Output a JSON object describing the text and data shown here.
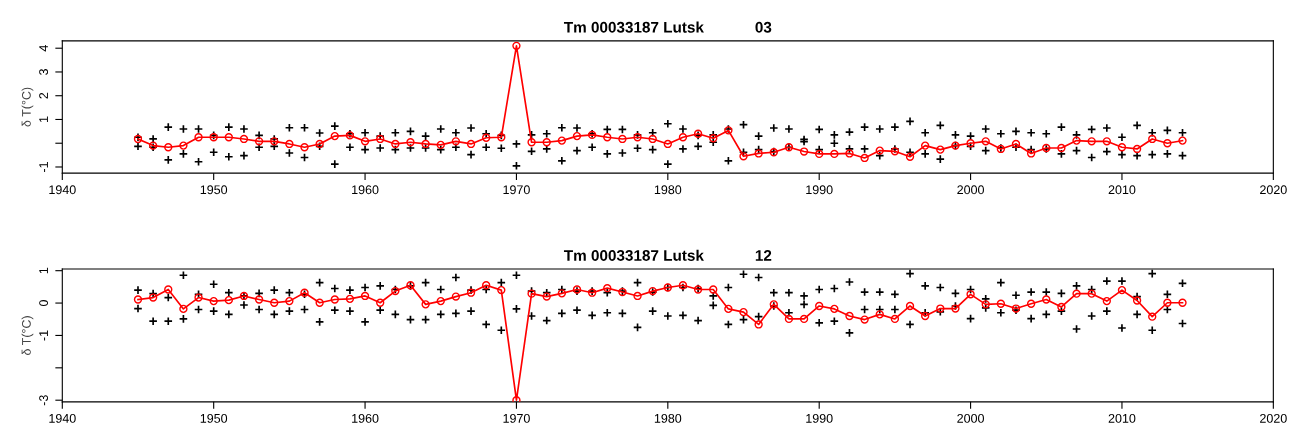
{
  "chart_data": [
    {
      "type": "line",
      "title": "Tm 00033187 Lutsk            03",
      "ylabel": "δ T(°C)",
      "xlim": [
        1940,
        2020
      ],
      "xticks": [
        1940,
        1950,
        1960,
        1970,
        1980,
        1990,
        2000,
        2010,
        2020
      ],
      "ylim": [
        -1.26,
        4.31
      ],
      "yticks": [
        -1,
        {
          "value": 0,
          "label": null
        },
        1,
        2,
        3,
        4
      ],
      "grid": false,
      "series": [
        {
          "type": "scatter",
          "color": "#000000",
          "marker": "cross",
          "x": [
            1945,
            1945,
            1946,
            1946,
            1947,
            1947,
            1948,
            1948,
            1949,
            1949,
            1950,
            1950,
            1951,
            1951,
            1952,
            1952,
            1953,
            1953,
            1954,
            1954,
            1955,
            1955,
            1956,
            1956,
            1957,
            1957,
            1958,
            1958,
            1959,
            1959,
            1960,
            1960,
            1961,
            1961,
            1962,
            1962,
            1963,
            1963,
            1964,
            1964,
            1965,
            1965,
            1966,
            1966,
            1967,
            1967,
            1968,
            1968,
            1969,
            1969,
            1970,
            1970,
            1971,
            1971,
            1972,
            1972,
            1973,
            1973,
            1974,
            1974,
            1975,
            1975,
            1976,
            1976,
            1977,
            1977,
            1978,
            1978,
            1979,
            1979,
            1980,
            1980,
            1981,
            1981,
            1982,
            1982,
            1983,
            1983,
            1984,
            1984,
            1985,
            1985,
            1986,
            1986,
            1987,
            1987,
            1988,
            1988,
            1989,
            1989,
            1990,
            1990,
            1991,
            1991,
            1992,
            1992,
            1993,
            1993,
            1994,
            1994,
            1995,
            1995,
            1996,
            1996,
            1997,
            1997,
            1998,
            1998,
            1999,
            1999,
            2000,
            2000,
            2001,
            2001,
            2002,
            2002,
            2003,
            2003,
            2004,
            2004,
            2005,
            2005,
            2006,
            2006,
            2007,
            2007,
            2008,
            2008,
            2009,
            2009,
            2010,
            2010,
            2011,
            2011,
            2012,
            2012,
            2013,
            2013,
            2014,
            2014
          ],
          "values": [
            0.25,
            -0.13,
            0.18,
            -0.17,
            0.68,
            -0.7,
            0.6,
            -0.45,
            0.6,
            -0.78,
            0.33,
            -0.38,
            0.68,
            -0.57,
            0.6,
            -0.52,
            0.33,
            -0.17,
            0.18,
            -0.13,
            0.65,
            -0.41,
            0.65,
            -0.6,
            0.43,
            -0.13,
            0.72,
            -0.88,
            0.4,
            -0.17,
            0.44,
            -0.27,
            0.3,
            -0.2,
            0.44,
            -0.27,
            0.5,
            -0.2,
            0.3,
            -0.2,
            0.6,
            -0.27,
            0.44,
            -0.17,
            0.64,
            -0.48,
            0.4,
            -0.17,
            0.33,
            -0.21,
            -0.03,
            -0.95,
            0.35,
            -0.34,
            0.4,
            -0.24,
            0.65,
            -0.74,
            0.64,
            -0.31,
            0.4,
            -0.17,
            0.58,
            -0.45,
            0.58,
            -0.41,
            0.35,
            -0.21,
            0.44,
            -0.27,
            0.82,
            -0.88,
            0.6,
            -0.24,
            0.33,
            -0.13,
            0.35,
            0.04,
            0.6,
            -0.74,
            0.78,
            -0.38,
            0.3,
            -0.27,
            0.64,
            -0.35,
            0.6,
            -0.17,
            0.16,
            0.07,
            0.58,
            -0.27,
            0.35,
            0,
            0.47,
            -0.24,
            0.68,
            -0.24,
            0.6,
            -0.52,
            0.68,
            -0.24,
            0.92,
            -0.38,
            0.44,
            -0.45,
            0.75,
            -0.67,
            0.35,
            -0.1,
            0.3,
            -0.13,
            0.6,
            -0.31,
            0.4,
            -0.2,
            0.5,
            -0.17,
            0.44,
            -0.27,
            0.4,
            -0.24,
            0.68,
            -0.45,
            0.35,
            -0.31,
            0.58,
            -0.6,
            0.64,
            -0.35,
            0.25,
            -0.48,
            0.75,
            -0.52,
            0.44,
            -0.48,
            0.54,
            -0.45,
            0.44,
            -0.52
          ]
        },
        {
          "color": "#ff0000",
          "marker": "circle",
          "x": [
            1945,
            1946,
            1947,
            1948,
            1949,
            1950,
            1951,
            1952,
            1953,
            1954,
            1955,
            1956,
            1957,
            1958,
            1959,
            1960,
            1961,
            1962,
            1963,
            1964,
            1965,
            1966,
            1967,
            1968,
            1969,
            1970,
            1971,
            1972,
            1973,
            1974,
            1975,
            1976,
            1977,
            1978,
            1979,
            1980,
            1981,
            1982,
            1983,
            1984,
            1985,
            1986,
            1987,
            1988,
            1989,
            1990,
            1991,
            1992,
            1993,
            1994,
            1995,
            1996,
            1997,
            1998,
            1999,
            2000,
            2001,
            2002,
            2003,
            2004,
            2005,
            2006,
            2007,
            2008,
            2009,
            2010,
            2011,
            2012,
            2013,
            2014
          ],
          "values": [
            0.18,
            -0.1,
            -0.17,
            -0.1,
            0.25,
            0.25,
            0.25,
            0.18,
            0.08,
            0.08,
            -0.03,
            -0.17,
            -0.03,
            0.3,
            0.33,
            0.08,
            0.18,
            -0.03,
            0.04,
            -0.03,
            -0.07,
            0.08,
            -0.03,
            0.23,
            0.25,
            4.1,
            0.04,
            0.04,
            0.11,
            0.3,
            0.35,
            0.25,
            0.18,
            0.25,
            0.18,
            -0.03,
            0.25,
            0.4,
            0.21,
            0.54,
            -0.55,
            -0.43,
            -0.38,
            -0.17,
            -0.35,
            -0.45,
            -0.45,
            -0.43,
            -0.62,
            -0.31,
            -0.34,
            -0.57,
            -0.1,
            -0.27,
            -0.1,
            0,
            0.08,
            -0.24,
            -0.03,
            -0.43,
            -0.2,
            -0.2,
            0.11,
            0.08,
            0.08,
            -0.17,
            -0.24,
            0.18,
            0,
            0.11
          ]
        }
      ]
    },
    {
      "type": "line",
      "title": "Tm 00033187 Lutsk            12",
      "ylabel": "δ T(°C)",
      "xlim": [
        1940,
        2020
      ],
      "xticks": [
        1940,
        1950,
        1960,
        1970,
        1980,
        1990,
        2000,
        2010,
        2020
      ],
      "ylim": [
        -3.05,
        1.05
      ],
      "yticks": [
        -3,
        {
          "value": -2,
          "label": null
        },
        -1,
        0,
        1
      ],
      "grid": false,
      "series": [
        {
          "type": "scatter",
          "color": "#000000",
          "marker": "cross",
          "x": [
            1945,
            1945,
            1946,
            1946,
            1947,
            1947,
            1948,
            1948,
            1949,
            1949,
            1950,
            1950,
            1951,
            1951,
            1952,
            1952,
            1953,
            1953,
            1954,
            1954,
            1955,
            1955,
            1956,
            1956,
            1957,
            1957,
            1958,
            1958,
            1959,
            1959,
            1960,
            1960,
            1961,
            1961,
            1962,
            1962,
            1963,
            1963,
            1964,
            1964,
            1965,
            1965,
            1966,
            1966,
            1967,
            1967,
            1968,
            1968,
            1969,
            1969,
            1970,
            1970,
            1971,
            1971,
            1972,
            1972,
            1973,
            1973,
            1974,
            1974,
            1975,
            1975,
            1976,
            1976,
            1977,
            1977,
            1978,
            1978,
            1979,
            1979,
            1980,
            1980,
            1981,
            1981,
            1982,
            1982,
            1983,
            1983,
            1984,
            1984,
            1985,
            1985,
            1986,
            1986,
            1987,
            1987,
            1988,
            1988,
            1989,
            1989,
            1990,
            1990,
            1991,
            1991,
            1992,
            1992,
            1993,
            1993,
            1994,
            1994,
            1995,
            1995,
            1996,
            1996,
            1997,
            1997,
            1998,
            1998,
            1999,
            1999,
            2000,
            2000,
            2001,
            2001,
            2002,
            2002,
            2003,
            2003,
            2004,
            2004,
            2005,
            2005,
            2006,
            2006,
            2007,
            2007,
            2008,
            2008,
            2009,
            2009,
            2010,
            2010,
            2011,
            2011,
            2012,
            2012,
            2013,
            2013,
            2014,
            2014
          ],
          "values": [
            0.4,
            -0.17,
            0.29,
            -0.56,
            0.17,
            -0.56,
            0.86,
            -0.49,
            0.27,
            -0.2,
            0.58,
            -0.25,
            0.32,
            -0.35,
            0.22,
            -0.06,
            0.3,
            -0.2,
            0.4,
            -0.35,
            0.32,
            -0.25,
            0.27,
            -0.2,
            0.63,
            -0.58,
            0.45,
            -0.22,
            0.4,
            -0.25,
            0.48,
            -0.58,
            0.53,
            -0.22,
            0.42,
            -0.35,
            0.53,
            -0.51,
            0.63,
            -0.51,
            0.42,
            -0.35,
            0.79,
            -0.32,
            0.4,
            -0.25,
            0.42,
            -0.66,
            0.63,
            -0.84,
            0.86,
            -0.18,
            0.37,
            -0.4,
            0.32,
            -0.54,
            0.42,
            -0.32,
            0.37,
            -0.22,
            0.37,
            -0.38,
            0.32,
            -0.3,
            0.37,
            -0.32,
            0.63,
            -0.75,
            0.34,
            -0.25,
            0.48,
            -0.4,
            0.48,
            -0.38,
            0.45,
            -0.54,
            0.22,
            -0.07,
            0.48,
            -0.66,
            0.89,
            -0.51,
            0.79,
            -0.42,
            0.32,
            -0.09,
            0.32,
            -0.3,
            0.22,
            -0.04,
            0.42,
            -0.61,
            0.45,
            -0.56,
            0.65,
            -0.92,
            0.34,
            -0.2,
            0.34,
            -0.2,
            0.27,
            -0.2,
            0.91,
            -0.66,
            0.53,
            -0.3,
            0.48,
            -0.27,
            0.3,
            -0.09,
            0.42,
            -0.48,
            0.13,
            -0.15,
            0.63,
            -0.3,
            0.24,
            -0.22,
            0.34,
            -0.48,
            0.34,
            -0.35,
            0.3,
            -0.25,
            0.53,
            -0.8,
            0.42,
            -0.4,
            0.68,
            -0.25,
            0.68,
            -0.77,
            0.2,
            -0.35,
            0.91,
            -0.84,
            0.27,
            -0.2,
            0.61,
            -0.63
          ]
        },
        {
          "color": "#ff0000",
          "marker": "circle",
          "x": [
            1945,
            1946,
            1947,
            1948,
            1949,
            1950,
            1951,
            1952,
            1953,
            1954,
            1955,
            1956,
            1957,
            1958,
            1959,
            1960,
            1961,
            1962,
            1963,
            1964,
            1965,
            1966,
            1967,
            1968,
            1969,
            1970,
            1971,
            1972,
            1973,
            1974,
            1975,
            1976,
            1977,
            1978,
            1979,
            1980,
            1981,
            1982,
            1983,
            1984,
            1985,
            1986,
            1987,
            1988,
            1989,
            1990,
            1991,
            1992,
            1993,
            1994,
            1995,
            1996,
            1997,
            1998,
            1999,
            2000,
            2001,
            2002,
            2003,
            2004,
            2005,
            2006,
            2007,
            2008,
            2009,
            2010,
            2011,
            2012,
            2013,
            2014
          ],
          "values": [
            0.11,
            0.17,
            0.42,
            -0.18,
            0.17,
            0.06,
            0.09,
            0.22,
            0.11,
            0.01,
            0.06,
            0.32,
            0.01,
            0.11,
            0.13,
            0.22,
            0.01,
            0.37,
            0.55,
            -0.04,
            0.06,
            0.2,
            0.32,
            0.55,
            0.4,
            -3.0,
            0.29,
            0.2,
            0.3,
            0.42,
            0.32,
            0.46,
            0.34,
            0.22,
            0.37,
            0.48,
            0.55,
            0.42,
            0.42,
            -0.18,
            -0.28,
            -0.66,
            -0.04,
            -0.49,
            -0.49,
            -0.09,
            -0.18,
            -0.4,
            -0.51,
            -0.35,
            -0.49,
            -0.09,
            -0.4,
            -0.17,
            -0.17,
            0.27,
            -0.04,
            -0.02,
            -0.17,
            -0.02,
            0.11,
            -0.12,
            0.29,
            0.29,
            0.06,
            0.4,
            0.08,
            -0.42,
            0.01,
            0.01
          ]
        }
      ]
    }
  ]
}
